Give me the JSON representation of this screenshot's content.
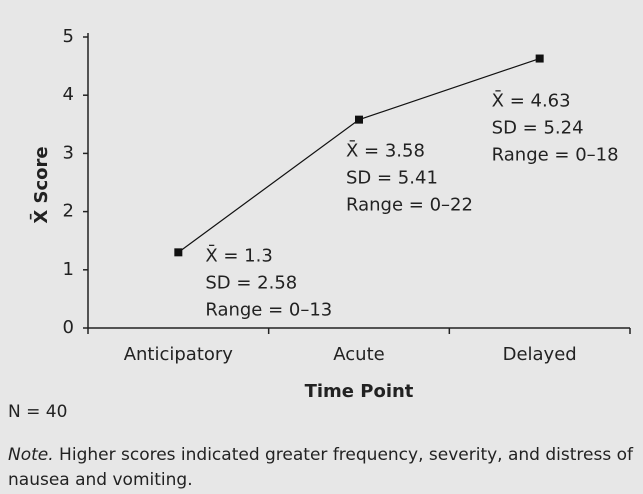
{
  "chart_data": {
    "type": "line",
    "categories": [
      "Anticipatory",
      "Acute",
      "Delayed"
    ],
    "values": [
      1.3,
      3.58,
      4.63
    ],
    "color": "#111111",
    "ylim": [
      0,
      5
    ],
    "yticks": [
      0,
      1,
      2,
      3,
      4,
      5
    ],
    "ylabel": "X̄ Score",
    "xlabel": "Time Point",
    "annotations": [
      {
        "lines": [
          "X̄ = 1.3",
          "SD = 2.58",
          "Range = 0–13"
        ]
      },
      {
        "lines": [
          "X̄ = 3.58",
          "SD = 5.41",
          "Range = 0–22"
        ]
      },
      {
        "lines": [
          "X̄ = 4.63",
          "SD = 5.24",
          "Range = 0–18"
        ]
      }
    ]
  },
  "footer": {
    "n": "N = 40",
    "note_label": "Note.",
    "note_text": " Higher scores indicated greater frequency, severity, and distress of nausea and vomiting."
  }
}
